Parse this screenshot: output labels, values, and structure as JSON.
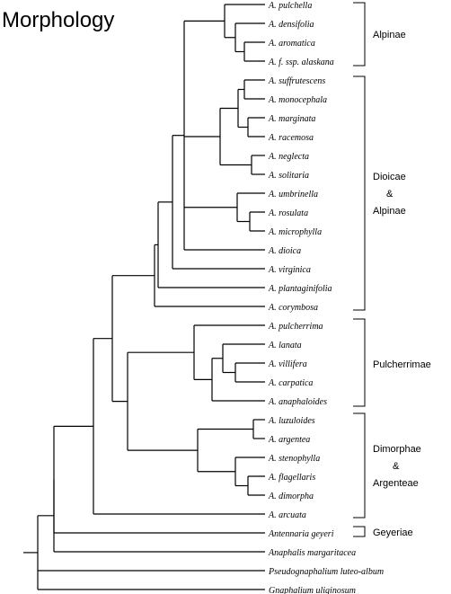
{
  "title": "Morphology",
  "taxa": [
    "A. pulchella",
    "A. densifolia",
    "A. aromatica",
    "A. f. ssp. alaskana",
    "A. suffrutescens",
    "A. monocephala",
    "A. marginata",
    "A. racemosa",
    "A. neglecta",
    "A. solitaria",
    "A. umbrinella",
    "A. rosulata",
    "A. microphylla",
    "A. dioica",
    "A. virginica",
    "A. plantaginifolia",
    "A. corymbosa",
    "A. pulcherrima",
    "A. lanata",
    "A. villifera",
    "A. carpatica",
    "A. anaphaloides",
    "A. luzuloides",
    "A. argentea",
    "A. stenophylla",
    "A. flagellaris",
    "A. dimorpha",
    "A. arcuata",
    "Antennaria geyeri",
    "Anaphalis margaritacea",
    "Pseudognaphalium luteo-album",
    "Gnaphalium uliginosum"
  ],
  "groups": {
    "alpinae": "Alpinae",
    "dioicae_line1": "Dioicae",
    "dioicae_line2": "&",
    "dioicae_line3": "Alpinae",
    "pulcherrimae": "Pulcherrimae",
    "dimorphae_line1": "Dimorphae",
    "dimorphae_line2": "&",
    "dimorphae_line3": "Argenteae",
    "geyeriae": "Geyeriae"
  },
  "colors": {
    "line": "#000000",
    "background": "#ffffff"
  }
}
